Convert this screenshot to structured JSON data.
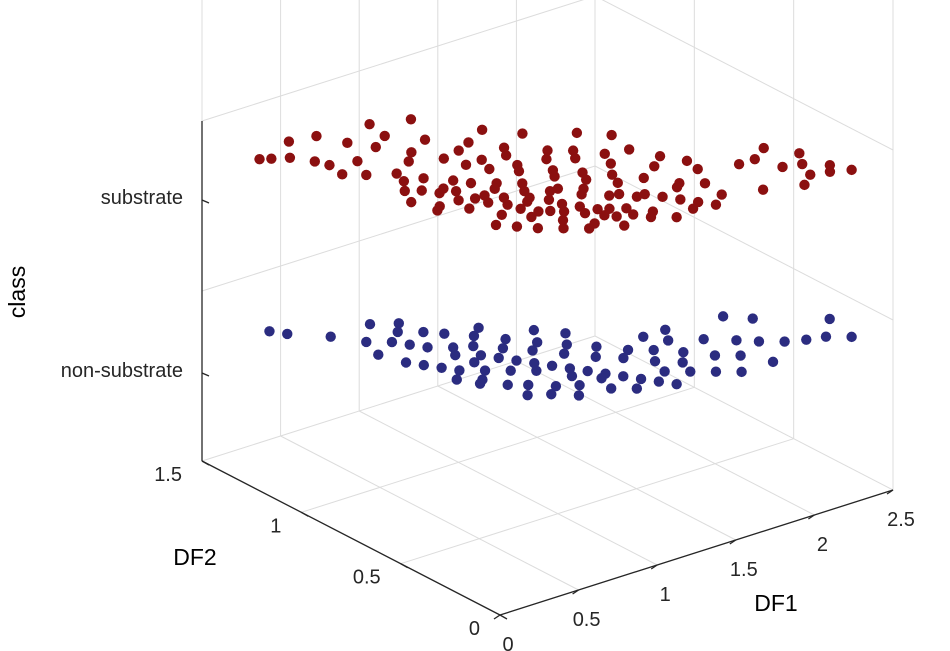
{
  "chart_data": {
    "type": "scatter",
    "title": "",
    "xlabel": "DF1",
    "ylabel": "DF2",
    "zlabel": "class",
    "x_ticks": [
      "0",
      "0.5",
      "1",
      "1.5",
      "2",
      "2.5"
    ],
    "y_ticks": [
      "0",
      "0.5",
      "1",
      "1.5"
    ],
    "z_ticks": [
      "non-substrate",
      "substrate"
    ],
    "xlim": [
      0,
      2.5
    ],
    "ylim": [
      0,
      1.5
    ],
    "grid": true,
    "colors": {
      "substrate": "#8b1010",
      "non-substrate": "#2b2c80"
    },
    "series": [
      {
        "class": "substrate",
        "points": [
          [
            0.05,
            1.25
          ],
          [
            0.1,
            1.23
          ],
          [
            0.18,
            1.2
          ],
          [
            0.25,
            1.13
          ],
          [
            0.28,
            1.08
          ],
          [
            0.26,
            1.0
          ],
          [
            0.35,
            0.95
          ],
          [
            0.38,
            0.78
          ],
          [
            0.45,
            0.84
          ],
          [
            0.45,
            0.75
          ],
          [
            0.5,
            0.7
          ],
          [
            0.52,
            0.62
          ],
          [
            0.55,
            0.72
          ],
          [
            0.58,
            0.68
          ],
          [
            0.6,
            0.6
          ],
          [
            0.62,
            0.55
          ],
          [
            0.66,
            0.6
          ],
          [
            0.68,
            0.5
          ],
          [
            0.7,
            0.45
          ],
          [
            0.72,
            0.55
          ],
          [
            0.75,
            0.4
          ],
          [
            0.78,
            0.48
          ],
          [
            0.8,
            0.38
          ],
          [
            0.82,
            0.5
          ],
          [
            0.85,
            0.35
          ],
          [
            0.88,
            0.45
          ],
          [
            0.9,
            0.4
          ],
          [
            0.92,
            0.3
          ],
          [
            0.95,
            0.35
          ],
          [
            0.98,
            0.25
          ],
          [
            1.0,
            0.3
          ],
          [
            1.02,
            0.22
          ],
          [
            1.05,
            0.28
          ],
          [
            1.1,
            0.2
          ],
          [
            1.12,
            0.25
          ],
          [
            1.15,
            0.15
          ],
          [
            1.2,
            0.18
          ],
          [
            1.25,
            0.1
          ],
          [
            0.7,
            0.7
          ],
          [
            0.8,
            0.65
          ],
          [
            0.9,
            0.6
          ],
          [
            1.0,
            0.5
          ],
          [
            1.1,
            0.45
          ],
          [
            1.2,
            0.35
          ],
          [
            1.3,
            0.3
          ],
          [
            1.4,
            0.2
          ],
          [
            0.65,
            0.75
          ],
          [
            0.75,
            0.62
          ],
          [
            0.85,
            0.55
          ],
          [
            0.95,
            0.5
          ],
          [
            1.05,
            0.42
          ],
          [
            1.15,
            0.36
          ],
          [
            1.25,
            0.3
          ],
          [
            1.35,
            0.25
          ],
          [
            1.45,
            0.15
          ],
          [
            1.5,
            0.1
          ],
          [
            1.6,
            0.15
          ],
          [
            1.8,
            0.1
          ],
          [
            2.0,
            0.05
          ],
          [
            2.1,
            0.1
          ],
          [
            2.2,
            0.08
          ],
          [
            2.3,
            0.05
          ],
          [
            1.7,
            0.35
          ],
          [
            1.9,
            0.3
          ],
          [
            2.05,
            0.2
          ],
          [
            0.55,
            0.82
          ],
          [
            0.48,
            0.9
          ],
          [
            0.62,
            0.95
          ],
          [
            0.78,
            0.9
          ],
          [
            0.92,
            0.82
          ],
          [
            1.02,
            0.72
          ],
          [
            1.12,
            0.62
          ],
          [
            1.22,
            0.55
          ],
          [
            1.32,
            0.48
          ],
          [
            1.42,
            0.4
          ],
          [
            1.52,
            0.3
          ],
          [
            0.7,
            1.0
          ],
          [
            0.85,
            1.05
          ],
          [
            1.0,
            0.95
          ],
          [
            1.1,
            0.85
          ],
          [
            0.88,
            0.75
          ],
          [
            0.98,
            0.68
          ],
          [
            1.08,
            0.58
          ],
          [
            1.18,
            0.5
          ],
          [
            1.28,
            0.42
          ],
          [
            0.58,
            0.45
          ],
          [
            0.68,
            0.38
          ],
          [
            0.78,
            0.3
          ],
          [
            0.88,
            0.22
          ],
          [
            0.98,
            0.15
          ],
          [
            1.4,
            0.55
          ],
          [
            1.55,
            0.45
          ],
          [
            1.65,
            0.5
          ],
          [
            1.62,
            0.25
          ],
          [
            2.15,
            0.18
          ],
          [
            2.25,
            0.12
          ],
          [
            1.3,
            0.65
          ],
          [
            1.45,
            0.62
          ],
          [
            0.6,
            1.1
          ],
          [
            0.72,
            1.15
          ],
          [
            0.52,
            1.18
          ],
          [
            0.42,
            1.05
          ],
          [
            1.58,
            0.6
          ],
          [
            1.72,
            0.42
          ],
          [
            0.5,
            0.55
          ],
          [
            0.4,
            0.62
          ],
          [
            0.32,
            0.7
          ],
          [
            0.36,
            0.6
          ],
          [
            0.9,
            0.92
          ],
          [
            0.82,
            0.82
          ],
          [
            1.18,
            0.7
          ],
          [
            1.05,
            0.8
          ],
          [
            0.72,
            0.25
          ],
          [
            0.62,
            0.3
          ],
          [
            0.82,
            0.2
          ],
          [
            1.38,
            0.12
          ],
          [
            1.48,
            0.28
          ],
          [
            2.0,
            0.3
          ],
          [
            2.12,
            0.35
          ],
          [
            2.22,
            0.25
          ],
          [
            0.95,
            1.2
          ],
          [
            1.15,
            1.0
          ],
          [
            1.28,
            0.9
          ],
          [
            0.45,
            1.28
          ],
          [
            0.3,
            1.3
          ],
          [
            0.75,
            1.25
          ],
          [
            1.62,
            0.72
          ],
          [
            1.5,
            0.8
          ],
          [
            0.55,
            0.35
          ],
          [
            0.48,
            0.4
          ],
          [
            1.25,
            0.75
          ],
          [
            1.35,
            0.7
          ]
        ]
      },
      {
        "class": "non-substrate",
        "points": [
          [
            0.05,
            1.2
          ],
          [
            0.1,
            1.15
          ],
          [
            0.25,
            1.05
          ],
          [
            0.35,
            0.95
          ],
          [
            0.45,
            0.9
          ],
          [
            0.5,
            0.85
          ],
          [
            0.55,
            0.8
          ],
          [
            0.6,
            0.7
          ],
          [
            0.65,
            0.75
          ],
          [
            0.7,
            0.65
          ],
          [
            0.75,
            0.6
          ],
          [
            0.8,
            0.55
          ],
          [
            0.85,
            0.5
          ],
          [
            0.9,
            0.45
          ],
          [
            0.95,
            0.4
          ],
          [
            1.0,
            0.35
          ],
          [
            1.05,
            0.3
          ],
          [
            1.1,
            0.25
          ],
          [
            1.15,
            0.2
          ],
          [
            1.2,
            0.15
          ],
          [
            1.25,
            0.1
          ],
          [
            0.5,
            0.6
          ],
          [
            0.6,
            0.55
          ],
          [
            0.7,
            0.5
          ],
          [
            0.8,
            0.45
          ],
          [
            0.9,
            0.35
          ],
          [
            1.0,
            0.28
          ],
          [
            0.55,
            0.95
          ],
          [
            0.65,
            0.9
          ],
          [
            0.72,
            0.85
          ],
          [
            0.82,
            0.78
          ],
          [
            0.92,
            0.7
          ],
          [
            1.02,
            0.62
          ],
          [
            1.12,
            0.55
          ],
          [
            1.22,
            0.48
          ],
          [
            1.32,
            0.4
          ],
          [
            1.42,
            0.35
          ],
          [
            1.52,
            0.28
          ],
          [
            1.62,
            0.2
          ],
          [
            1.72,
            0.15
          ],
          [
            1.82,
            0.25
          ],
          [
            1.9,
            0.2
          ],
          [
            2.0,
            0.15
          ],
          [
            2.1,
            0.12
          ],
          [
            2.2,
            0.1
          ],
          [
            2.3,
            0.05
          ],
          [
            2.35,
            0.2
          ],
          [
            0.4,
            0.7
          ],
          [
            0.45,
            0.65
          ],
          [
            0.52,
            0.5
          ],
          [
            0.58,
            0.42
          ],
          [
            0.66,
            0.38
          ],
          [
            0.76,
            0.32
          ],
          [
            0.86,
            0.28
          ],
          [
            0.96,
            0.2
          ],
          [
            1.06,
            0.15
          ],
          [
            1.3,
            0.2
          ],
          [
            1.4,
            0.15
          ],
          [
            1.5,
            0.1
          ],
          [
            1.6,
            0.05
          ],
          [
            0.3,
            0.85
          ],
          [
            0.35,
            0.75
          ],
          [
            0.42,
            0.55
          ],
          [
            0.48,
            0.48
          ],
          [
            0.62,
            0.62
          ],
          [
            0.74,
            0.72
          ],
          [
            0.84,
            0.65
          ],
          [
            0.94,
            0.58
          ],
          [
            1.04,
            0.5
          ],
          [
            1.14,
            0.42
          ],
          [
            1.24,
            0.36
          ],
          [
            1.34,
            0.28
          ],
          [
            1.44,
            0.22
          ],
          [
            1.55,
            0.38
          ],
          [
            1.7,
            0.32
          ],
          [
            1.8,
            0.05
          ],
          [
            0.58,
            0.32
          ],
          [
            0.68,
            0.28
          ],
          [
            0.78,
            0.22
          ],
          [
            1.62,
            0.45
          ],
          [
            2.05,
            0.35
          ],
          [
            1.95,
            0.42
          ],
          [
            0.9,
            0.82
          ],
          [
            1.1,
            0.7
          ],
          [
            0.62,
            1.0
          ],
          [
            0.5,
            1.05
          ],
          [
            1.48,
            0.45
          ],
          [
            1.2,
            0.62
          ]
        ]
      }
    ]
  }
}
